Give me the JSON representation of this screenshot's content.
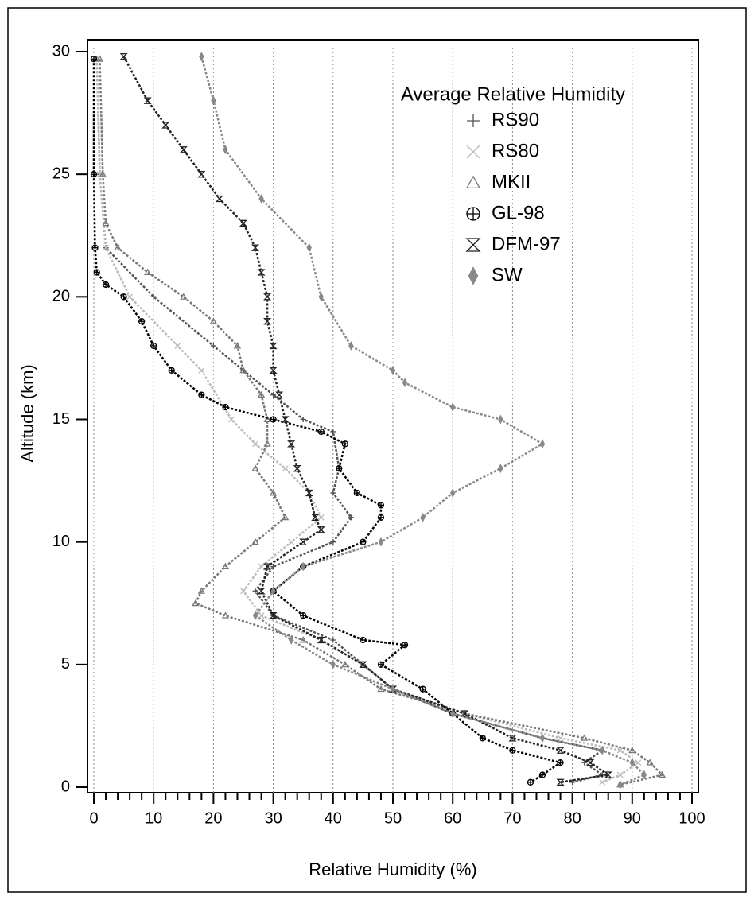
{
  "chart_data": {
    "type": "scatter",
    "xlabel": "Relative Humidity (%)",
    "ylabel": "Altitude (km)",
    "legend_title": "Average Relative Humidity",
    "legend_position": "upper right",
    "xlim": [
      0,
      100
    ],
    "xticks": [
      0,
      10,
      20,
      30,
      40,
      50,
      60,
      70,
      80,
      90,
      100
    ],
    "ylim": [
      0,
      30
    ],
    "yticks": [
      0,
      5,
      10,
      15,
      20,
      25,
      30
    ],
    "grid": true,
    "series": [
      {
        "name": "RS90",
        "color": "#555555",
        "marker": "plus",
        "y": [
          29.7,
          25,
          22,
          20,
          18,
          17,
          16,
          15,
          14.5,
          13,
          12,
          11,
          10,
          9,
          8,
          7,
          6,
          5,
          4,
          3,
          2,
          1.5,
          1,
          0.5,
          0.2
        ],
        "x": [
          0.5,
          1,
          2,
          10,
          20,
          25,
          30,
          35,
          40,
          41,
          40,
          43,
          40,
          30,
          27,
          30,
          40,
          45,
          50,
          60,
          75,
          85,
          82,
          85,
          80
        ]
      },
      {
        "name": "RS80",
        "color": "#bbbbbb",
        "marker": "cross",
        "y": [
          29.7,
          25,
          22,
          20,
          18,
          17,
          15,
          14,
          13,
          12,
          11,
          10,
          9,
          8,
          7,
          6,
          5,
          4,
          3,
          2,
          1.5,
          1,
          0.5,
          0.2
        ],
        "x": [
          0.5,
          1,
          2,
          6,
          14,
          18,
          23,
          27,
          32,
          36,
          38,
          33,
          28,
          25,
          28,
          38,
          45,
          50,
          62,
          78,
          88,
          91,
          88,
          85
        ]
      },
      {
        "name": "MKII",
        "color": "#777777",
        "marker": "triangle",
        "y": [
          29.7,
          25,
          23,
          22,
          21,
          20,
          19,
          18,
          17,
          16,
          15,
          14,
          13,
          12,
          11,
          10,
          9,
          8,
          7.5,
          7,
          6,
          5,
          4,
          3,
          2,
          1.5,
          1,
          0.5,
          0.1
        ],
        "x": [
          1,
          1.5,
          2,
          4,
          9,
          15,
          20,
          24,
          25,
          28,
          29,
          29,
          27,
          30,
          32,
          27,
          22,
          18,
          17,
          22,
          35,
          42,
          48,
          62,
          82,
          90,
          93,
          95,
          88
        ]
      },
      {
        "name": "GL-98",
        "color": "#000000",
        "marker": "circle",
        "y": [
          29.7,
          25,
          22,
          21,
          20.5,
          20,
          19,
          18,
          17,
          16,
          15.5,
          15,
          14.5,
          14,
          13,
          12,
          11.5,
          11,
          10,
          9,
          8,
          7,
          6,
          5.8,
          5,
          4,
          3,
          2,
          1.5,
          1,
          0.5,
          0.2
        ],
        "x": [
          0,
          0,
          0.2,
          0.5,
          2,
          5,
          8,
          10,
          13,
          18,
          22,
          30,
          38,
          42,
          41,
          44,
          48,
          48,
          45,
          35,
          30,
          35,
          45,
          52,
          48,
          55,
          60,
          65,
          70,
          78,
          75,
          73
        ]
      },
      {
        "name": "DFM-97",
        "color": "#222222",
        "marker": "hourglass",
        "y": [
          29.8,
          28,
          27,
          26,
          25,
          24,
          23,
          22,
          21,
          20,
          19,
          18,
          17,
          16,
          15,
          14,
          13,
          12,
          11,
          10.5,
          10,
          9,
          8,
          7,
          6,
          5,
          4,
          3,
          2,
          1.5,
          1,
          0.5,
          0.2
        ],
        "x": [
          5,
          9,
          12,
          15,
          18,
          21,
          25,
          27,
          28,
          29,
          29,
          30,
          30,
          31,
          32,
          33,
          34,
          36,
          37,
          38,
          35,
          29,
          28,
          30,
          38,
          45,
          50,
          62,
          70,
          78,
          83,
          86,
          78
        ]
      },
      {
        "name": "SW",
        "color": "#888888",
        "marker": "diamond",
        "y": [
          29.8,
          28,
          26,
          24,
          22,
          20,
          18,
          17,
          16.5,
          15.5,
          15,
          14,
          13,
          12,
          11,
          10,
          9,
          8,
          7,
          6,
          5,
          4,
          3,
          2,
          1.5,
          1,
          0.5,
          0.1
        ],
        "x": [
          18,
          20,
          22,
          28,
          36,
          38,
          43,
          50,
          52,
          60,
          68,
          75,
          68,
          60,
          55,
          48,
          35,
          30,
          27,
          33,
          40,
          50,
          60,
          75,
          85,
          90,
          92,
          88
        ]
      }
    ]
  }
}
